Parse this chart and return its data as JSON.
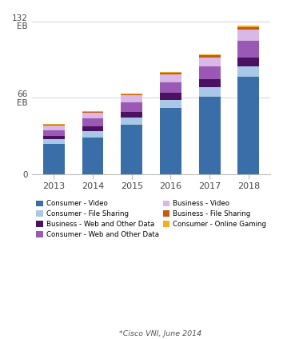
{
  "years": [
    "2013",
    "2014",
    "2015",
    "2016",
    "2017",
    "2018"
  ],
  "stack_order": [
    "consumer_video",
    "consumer_file_sharing",
    "business_web",
    "consumer_web",
    "business_video",
    "business_file_sharing",
    "consumer_gaming"
  ],
  "consumer_video": [
    26,
    32,
    43,
    57,
    67,
    84
  ],
  "consumer_file_sharing": [
    4,
    5,
    6,
    7,
    8,
    9
  ],
  "business_web": [
    3,
    4,
    5,
    6,
    7,
    8
  ],
  "consumer_web": [
    5,
    7,
    8,
    9,
    11,
    14
  ],
  "business_video": [
    4,
    5,
    6,
    7,
    8,
    10
  ],
  "business_file_sharing": [
    1,
    1,
    1,
    1.5,
    1.5,
    2
  ],
  "consumer_gaming": [
    0.5,
    0.5,
    0.7,
    0.8,
    1.0,
    1.2
  ],
  "colors": {
    "consumer_video": "#3a6ea8",
    "consumer_file_sharing": "#a8c8e8",
    "business_web": "#4a1260",
    "consumer_web": "#9b59b6",
    "business_video": "#d9b8e8",
    "business_file_sharing": "#c85a10",
    "consumer_gaming": "#f0b020"
  },
  "legend_labels": {
    "consumer_video": "Consumer - Video",
    "consumer_file_sharing": "Consumer - File Sharing",
    "business_web": "Business - Web and Other Data",
    "consumer_web": "Consumer - Web and Other Data",
    "business_video": "Business - Video",
    "business_file_sharing": "Business - File Sharing",
    "consumer_gaming": "Consumer - Online Gaming"
  },
  "yticks": [
    0,
    66,
    132
  ],
  "ylim": [
    0,
    140
  ],
  "annotation": "*Cisco VNI, June 2014",
  "bar_width": 0.55
}
